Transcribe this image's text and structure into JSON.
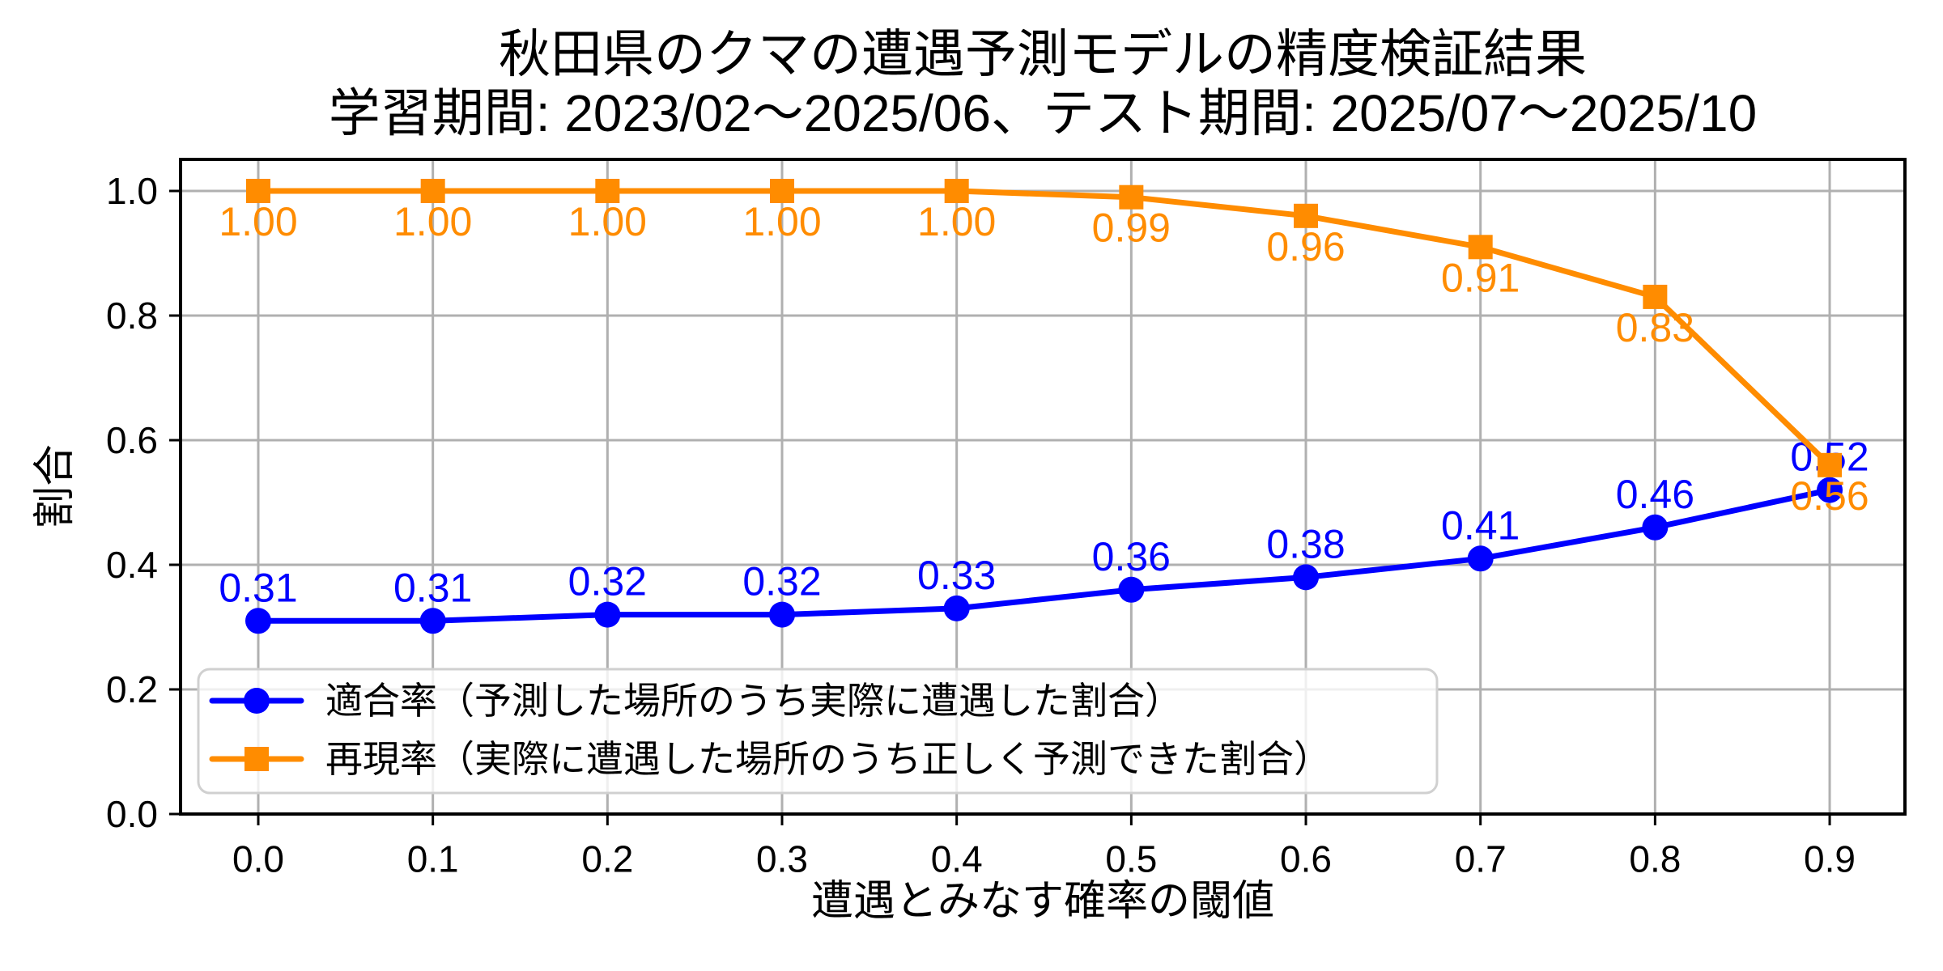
{
  "chart_data": {
    "type": "line",
    "title": "秋田県のクマの遭遇予測モデルの精度検証結果",
    "subtitle": "学習期間: 2023/02〜2025/06、テスト期間: 2025/07〜2025/10",
    "xlabel": "遭遇とみなす確率の閾値",
    "ylabel": "割合",
    "x": [
      0.0,
      0.1,
      0.2,
      0.3,
      0.4,
      0.5,
      0.6,
      0.7,
      0.8,
      0.9
    ],
    "xticks": [
      0.0,
      0.1,
      0.2,
      0.3,
      0.4,
      0.5,
      0.6,
      0.7,
      0.8,
      0.9
    ],
    "yticks": [
      0.0,
      0.2,
      0.4,
      0.6,
      0.8,
      1.0
    ],
    "xlim": [
      -0.045,
      0.945
    ],
    "ylim": [
      0.0,
      1.05
    ],
    "grid": true,
    "legend_position": "lower left",
    "value_label_decimals": 2,
    "series": [
      {
        "id": "precision",
        "name": "適合率（予測した場所のうち実際に遭遇した割合）",
        "marker": "circle",
        "color": "#0000ff",
        "label_side": "above",
        "values": [
          0.31,
          0.31,
          0.32,
          0.32,
          0.33,
          0.36,
          0.38,
          0.41,
          0.46,
          0.52
        ]
      },
      {
        "id": "recall",
        "name": "再現率（実際に遭遇した場所のうち正しく予測できた割合）",
        "marker": "square",
        "color": "#ff8c00",
        "label_side": "below",
        "values": [
          1.0,
          1.0,
          1.0,
          1.0,
          1.0,
          0.99,
          0.96,
          0.91,
          0.83,
          0.56
        ]
      }
    ]
  }
}
